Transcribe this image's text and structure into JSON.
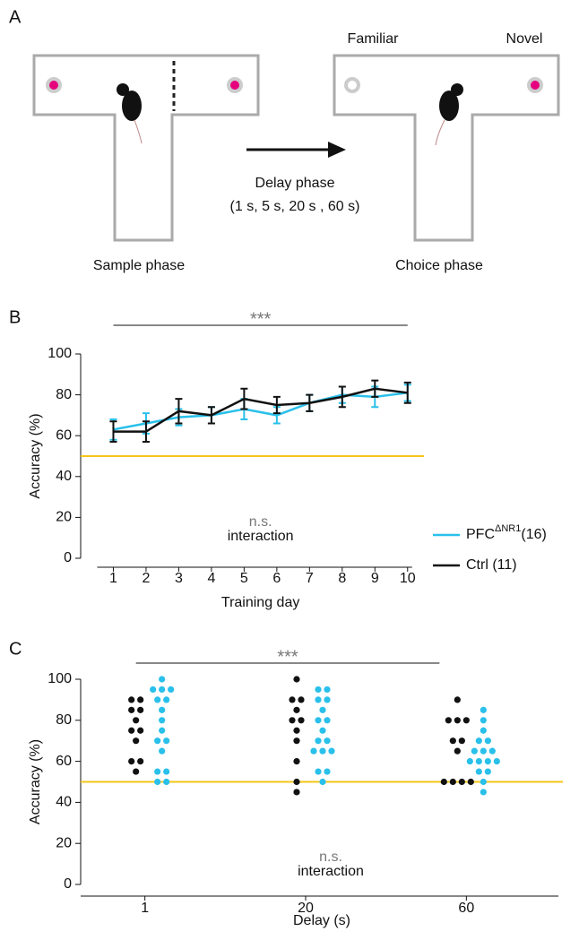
{
  "panel_a": {
    "label": "A",
    "familiar": "Familiar",
    "novel": "Novel",
    "delay_phase": "Delay phase",
    "delays": "(1 s, 5 s, 20 s , 60 s)",
    "sample_phase": "Sample phase",
    "choice_phase": "Choice phase"
  },
  "chart_data": [
    {
      "type": "line",
      "panel": "B",
      "xlabel": "Training day",
      "ylabel": "Accuracy (%)",
      "x": [
        1,
        2,
        3,
        4,
        5,
        6,
        7,
        8,
        9,
        10
      ],
      "xlim": [
        0,
        10.5
      ],
      "xticks": [
        1,
        2,
        3,
        4,
        5,
        6,
        7,
        8,
        9,
        10
      ],
      "ylim": [
        0,
        100
      ],
      "yticks": [
        0,
        20,
        40,
        60,
        80,
        100
      ],
      "chance": 50,
      "chance_color": "#f5c518",
      "significance": "***",
      "ns": "n.s.",
      "interaction": "interaction",
      "series": [
        {
          "name": "PFC",
          "name_superscript": "ΔNR1",
          "name_suffix": "(16)",
          "color": "#29c0ea",
          "values": [
            63,
            66,
            69,
            70,
            73,
            70,
            76,
            80,
            79,
            81
          ],
          "errors": [
            5,
            5,
            4,
            4,
            5,
            4,
            4,
            4,
            5,
            4
          ]
        },
        {
          "name": "Ctrl (11)",
          "color": "#111111",
          "values": [
            62,
            62,
            72,
            70,
            78,
            75,
            76,
            79,
            83,
            81
          ],
          "errors": [
            5,
            5,
            6,
            4,
            5,
            4,
            4,
            5,
            4,
            5
          ]
        }
      ]
    },
    {
      "type": "strip",
      "panel": "C",
      "xlabel": "Delay (s)",
      "ylabel": "Accuracy (%)",
      "categories": [
        "1",
        "20",
        "60"
      ],
      "ylim": [
        0,
        100
      ],
      "yticks": [
        0,
        20,
        40,
        60,
        80,
        100
      ],
      "chance": 50,
      "chance_color": "#f5c518",
      "significance": "***",
      "ns": "n.s.",
      "interaction": "interaction",
      "series": [
        {
          "color": "#111111",
          "values": [
            [
              90,
              90,
              85,
              85,
              80,
              75,
              75,
              70,
              60,
              60,
              55
            ],
            [
              100,
              90,
              90,
              85,
              80,
              80,
              75,
              70,
              60,
              50,
              45
            ],
            [
              90,
              80,
              80,
              80,
              70,
              70,
              65,
              50,
              50,
              50,
              50
            ]
          ]
        },
        {
          "color": "#29c0ea",
          "values": [
            [
              100,
              95,
              95,
              95,
              90,
              90,
              85,
              80,
              75,
              70,
              70,
              65,
              55,
              55,
              50,
              50
            ],
            [
              95,
              95,
              90,
              90,
              85,
              80,
              80,
              75,
              70,
              70,
              65,
              65,
              65,
              55,
              55,
              50
            ],
            [
              85,
              80,
              75,
              70,
              70,
              65,
              65,
              65,
              60,
              60,
              60,
              60,
              55,
              55,
              50,
              45
            ]
          ]
        }
      ]
    }
  ]
}
